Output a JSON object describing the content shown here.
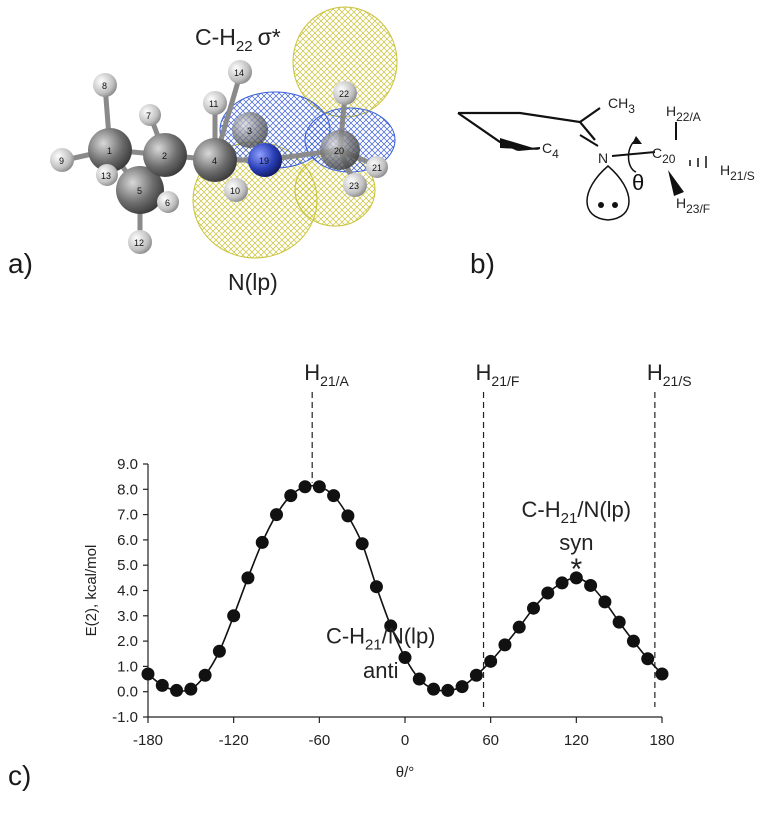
{
  "panel_a": {
    "label": "a)",
    "orbital_label_top": "C-H",
    "orbital_sub_top": "22",
    "orbital_sym_top": "σ*",
    "orbital_label_bottom": "N(lp)",
    "atom_numbers": [
      "8",
      "7",
      "1",
      "2",
      "9",
      "13",
      "5",
      "6",
      "12",
      "14",
      "11",
      "4",
      "3",
      "10",
      "22",
      "20",
      "23",
      "21",
      "19"
    ]
  },
  "panel_b": {
    "label": "b)",
    "ch3": "CH",
    "ch3_sub": "3",
    "c4": "C",
    "c4_sub": "4",
    "n": "N",
    "c20": "C",
    "c20_sub": "20",
    "theta": "θ",
    "h22": "H",
    "h22_sub": "22/A",
    "h21": "H",
    "h21_sub": "21/S",
    "h23": "H",
    "h23_sub": "23/F"
  },
  "panel_c": {
    "label": "c)"
  },
  "colors": {
    "carbon": "#6e6e6e",
    "hydrogen": "#c8c8c8",
    "nitrogen": "#2a3fb8",
    "orbital_blue": "#3b5fd9",
    "orbital_yellow": "#e8e04a"
  },
  "chart_data": {
    "type": "scatter",
    "xlabel": "θ/°",
    "ylabel": "E(2), kcal/mol",
    "xlim": [
      -180,
      180
    ],
    "ylim": [
      -1.0,
      9.0
    ],
    "xticks": [
      -180,
      -120,
      -60,
      0,
      60,
      120,
      180
    ],
    "xtick_labels": [
      "-180",
      "-120",
      "-60",
      "0",
      "60",
      "120",
      "180"
    ],
    "yticks": [
      -1.0,
      0.0,
      1.0,
      2.0,
      3.0,
      4.0,
      5.0,
      6.0,
      7.0,
      8.0,
      9.0
    ],
    "ytick_labels": [
      "-1.0",
      "0.0",
      "1.0",
      "2.0",
      "3.0",
      "4.0",
      "5.0",
      "6.0",
      "7.0",
      "8.0",
      "9.0"
    ],
    "grid": false,
    "series": [
      {
        "x": [
          -180,
          -170,
          -160,
          -150,
          -140,
          -130,
          -120,
          -110,
          -100,
          -90,
          -80,
          -70,
          -60,
          -50,
          -40,
          -30,
          -20,
          -10,
          0,
          10,
          20,
          30,
          40,
          50,
          60,
          70,
          80,
          90,
          100,
          110,
          120,
          130,
          140,
          150,
          160,
          170,
          180
        ],
        "y": [
          0.7,
          0.25,
          0.05,
          0.1,
          0.65,
          1.6,
          3.0,
          4.5,
          5.9,
          7.0,
          7.75,
          8.1,
          8.1,
          7.75,
          6.95,
          5.85,
          4.15,
          2.6,
          1.35,
          0.5,
          0.1,
          0.05,
          0.2,
          0.65,
          1.2,
          1.85,
          2.55,
          3.3,
          3.9,
          4.3,
          4.5,
          4.2,
          3.55,
          2.75,
          2.0,
          1.3,
          0.7
        ]
      }
    ],
    "vlines": [
      {
        "x": -65,
        "label": "H",
        "sub": "21/A"
      },
      {
        "x": 55,
        "label": "H",
        "sub": "21/F"
      },
      {
        "x": 175,
        "label": "H",
        "sub": "21/S"
      }
    ],
    "annotations": [
      {
        "text_line1": "C-H",
        "sub": "21",
        "text_rest": "/N(lp)",
        "text_line2": "anti"
      },
      {
        "text_line1": "C-H",
        "sub": "21",
        "text_rest": "/N(lp)",
        "text_line2": "syn",
        "marker": "*"
      }
    ]
  }
}
